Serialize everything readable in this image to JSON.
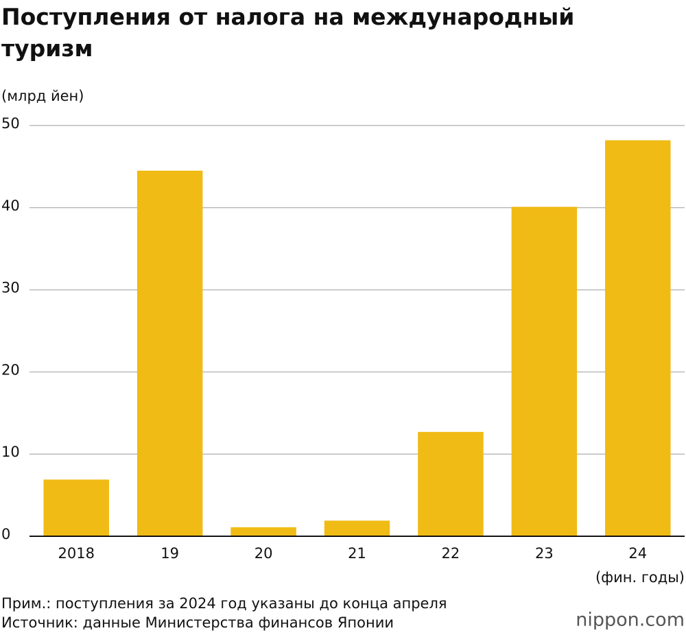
{
  "chart_data": {
    "type": "bar",
    "title": "Поступления от налога на международный туризм",
    "y_label": "(млрд йен)",
    "x_label": "(фин. годы)",
    "categories": [
      "2018",
      "19",
      "20",
      "21",
      "22",
      "23",
      "24"
    ],
    "values": [
      6.9,
      44.5,
      1.1,
      1.9,
      12.7,
      40.1,
      48.2
    ],
    "color": "#f0bb15",
    "ylim": [
      0,
      50
    ],
    "yticks": [
      0,
      10,
      20,
      30,
      40,
      50
    ],
    "grid": true,
    "note": "Прим.: поступления за 2024 год указаны до конца апреля",
    "source": "Источник: данные Министерства финансов Японии",
    "logo": "nippon.com"
  }
}
